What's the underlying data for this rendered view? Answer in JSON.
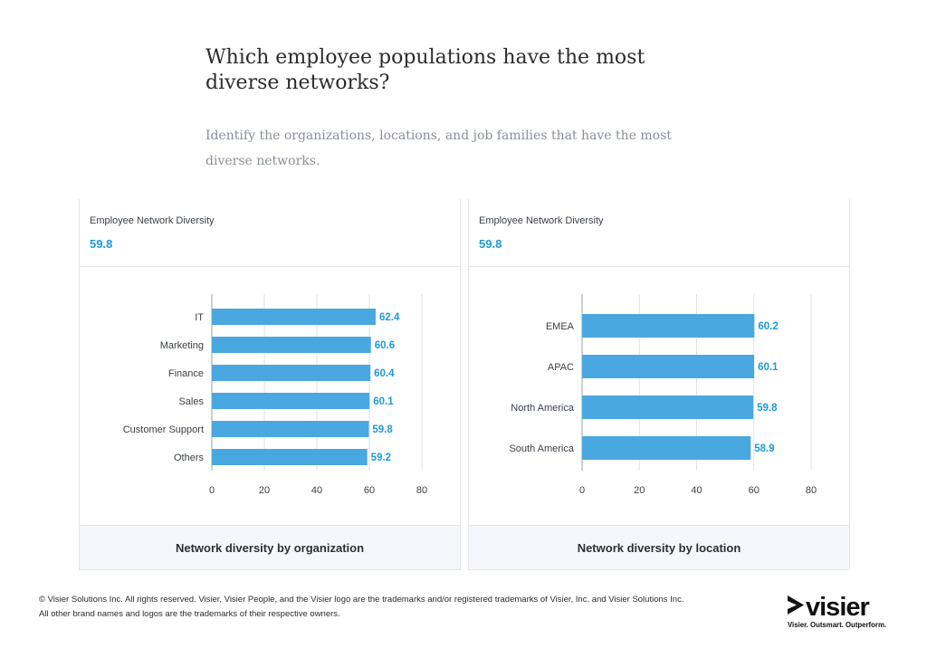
{
  "header": {
    "title": "Which employee populations have the most diverse networks?",
    "subtitle": "Identify the organizations, locations, and job families that have the most diverse networks."
  },
  "panels": [
    {
      "metric_label": "Employee Network Diversity",
      "metric_value": "59.8",
      "footer_label": "Network diversity by organization"
    },
    {
      "metric_label": "Employee Network Diversity",
      "metric_value": "59.8",
      "footer_label": "Network diversity by location"
    }
  ],
  "footer": {
    "legal_line1": "© Visier Solutions Inc. All rights reserved. Visier, Visier People, and the Visier logo are the trademarks and/or registered trademarks of Visier, Inc. and Visier Solutions Inc.",
    "legal_line2": "All other brand names and logos are the trademarks of their respective owners.",
    "logo_text": "visier",
    "tagline": "Visier. Outsmart. Outperform."
  },
  "colors": {
    "bar": "#4aa8e0",
    "value_label": "#1f9ad6",
    "gridline": "#dfe2e7"
  },
  "chart_data": [
    {
      "type": "bar",
      "orientation": "horizontal",
      "categories": [
        "IT",
        "Marketing",
        "Finance",
        "Sales",
        "Customer Support",
        "Others"
      ],
      "values": [
        62.4,
        60.6,
        60.4,
        60.1,
        59.8,
        59.2
      ],
      "value_labels": [
        "62.4",
        "60.6",
        "60.4",
        "60.1",
        "59.8",
        "59.2"
      ],
      "xlim": [
        0,
        80
      ],
      "xticks": [
        0,
        20,
        40,
        60,
        80
      ],
      "xtick_labels": [
        "0",
        "20",
        "40",
        "60",
        "80"
      ],
      "grid": true
    },
    {
      "type": "bar",
      "orientation": "horizontal",
      "categories": [
        "EMEA",
        "APAC",
        "North America",
        "South America"
      ],
      "values": [
        60.2,
        60.1,
        59.8,
        58.9
      ],
      "value_labels": [
        "60.2",
        "60.1",
        "59.8",
        "58.9"
      ],
      "xlim": [
        0,
        80
      ],
      "xticks": [
        0,
        20,
        40,
        60,
        80
      ],
      "xtick_labels": [
        "0",
        "20",
        "40",
        "60",
        "80"
      ],
      "grid": true
    }
  ]
}
